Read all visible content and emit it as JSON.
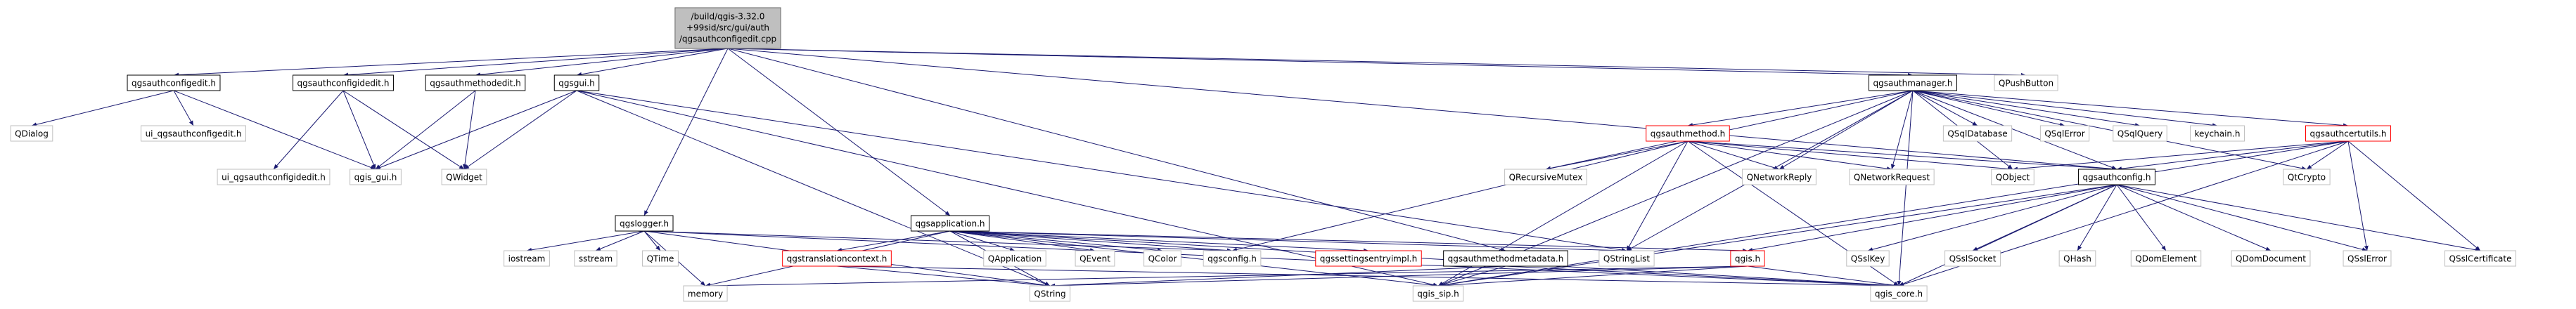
{
  "nodes": [
    {
      "lines": [
        "/build/qgis-3.32.0",
        "+99sid/src/gui/auth",
        "/qgsauthconfigedit.cpp"
      ]
    },
    {
      "label": "qgsauthconfigedit.h"
    },
    {
      "label": "qgsauthconfigidedit.h"
    },
    {
      "label": "qgsauthmethodedit.h"
    },
    {
      "label": "qgsgui.h"
    },
    {
      "label": "qgsauthmanager.h"
    },
    {
      "label": "QPushButton"
    },
    {
      "label": "QDialog"
    },
    {
      "label": "ui_qgsauthconfigedit.h"
    },
    {
      "label": "qgsauthmethod.h"
    },
    {
      "label": "QSqlDatabase"
    },
    {
      "label": "QSqlError"
    },
    {
      "label": "QSqlQuery"
    },
    {
      "label": "keychain.h"
    },
    {
      "label": "qgsauthcertutils.h"
    },
    {
      "label": "ui_qgsauthconfigidedit.h"
    },
    {
      "label": "qgis_gui.h"
    },
    {
      "label": "QWidget"
    },
    {
      "label": "QRecursiveMutex"
    },
    {
      "label": "QNetworkReply"
    },
    {
      "label": "QNetworkRequest"
    },
    {
      "label": "QObject"
    },
    {
      "label": "qgsauthconfig.h"
    },
    {
      "label": "QtCrypto"
    },
    {
      "label": "qgslogger.h"
    },
    {
      "label": "qgsapplication.h"
    },
    {
      "label": "iostream"
    },
    {
      "label": "sstream"
    },
    {
      "label": "QTime"
    },
    {
      "label": "qgstranslationcontext.h"
    },
    {
      "label": "QApplication"
    },
    {
      "label": "QEvent"
    },
    {
      "label": "QColor"
    },
    {
      "label": "qgsconfig.h"
    },
    {
      "label": "qgssettingsentryimpl.h"
    },
    {
      "label": "qgsauthmethodmetadata.h"
    },
    {
      "label": "QStringList"
    },
    {
      "label": "qgis.h"
    },
    {
      "label": "QSslKey"
    },
    {
      "label": "QSslSocket"
    },
    {
      "label": "QHash"
    },
    {
      "label": "QDomElement"
    },
    {
      "label": "QDomDocument"
    },
    {
      "label": "QSslError"
    },
    {
      "label": "QSslCertificate"
    },
    {
      "label": "memory"
    },
    {
      "label": "QString"
    },
    {
      "label": "qgis_sip.h"
    },
    {
      "label": "qgis_core.h"
    }
  ]
}
